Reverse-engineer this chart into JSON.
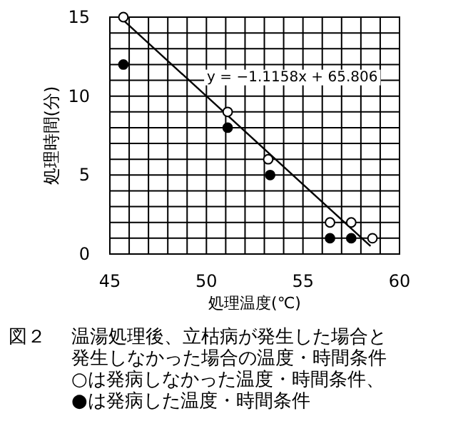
{
  "chart_data": {
    "type": "scatter",
    "xlabel": "処理温度(℃)",
    "ylabel": "処理時間(分)",
    "xlim": [
      45,
      60
    ],
    "xticks": [
      45,
      50,
      55,
      60
    ],
    "ylim": [
      0,
      15
    ],
    "yticks": [
      0,
      5,
      10,
      15
    ],
    "grid": true,
    "marker": "circle",
    "series": [
      {
        "color": "#ffffff",
        "x": [
          45.7,
          51.1,
          53.2,
          56.4,
          57.5,
          58.6
        ],
        "values": [
          15,
          9,
          6,
          2,
          2,
          1
        ]
      },
      {
        "color": "#000000",
        "x": [
          45.7,
          51.1,
          53.3,
          56.4,
          57.5
        ],
        "values": [
          12,
          8,
          5,
          1,
          1
        ]
      },
      {
        "type": "line",
        "marker": "none",
        "color": "#000000",
        "x": [
          45.7,
          58.5
        ],
        "values": [
          14.8,
          0.5
        ]
      }
    ],
    "annotations": [
      "y = −1.1158x + 65.806",
      "図２",
      "温湯処理後、立枯病が発生した場合と",
      "発生しなかった場合の温度・時間条件",
      "○は発病しなかった温度・時間条件、",
      "●は発病した温度・時間条件"
    ]
  }
}
